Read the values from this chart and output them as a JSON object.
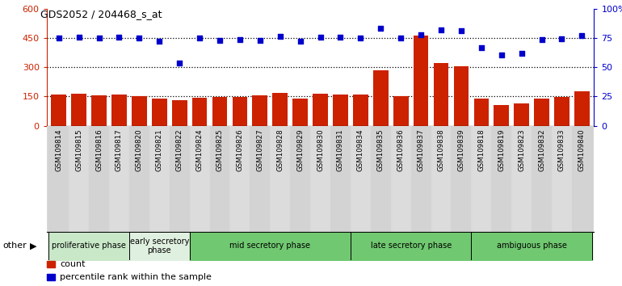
{
  "title": "GDS2052 / 204468_s_at",
  "samples": [
    "GSM109814",
    "GSM109815",
    "GSM109816",
    "GSM109817",
    "GSM109820",
    "GSM109821",
    "GSM109822",
    "GSM109824",
    "GSM109825",
    "GSM109826",
    "GSM109827",
    "GSM109828",
    "GSM109829",
    "GSM109830",
    "GSM109831",
    "GSM109834",
    "GSM109835",
    "GSM109836",
    "GSM109837",
    "GSM109838",
    "GSM109839",
    "GSM109818",
    "GSM109819",
    "GSM109823",
    "GSM109832",
    "GSM109833",
    "GSM109840"
  ],
  "counts": [
    160,
    163,
    155,
    160,
    152,
    140,
    130,
    142,
    148,
    147,
    155,
    168,
    140,
    165,
    162,
    160,
    283,
    152,
    462,
    320,
    305,
    138,
    105,
    115,
    138,
    148,
    175
  ],
  "percentiles": [
    450,
    452,
    450,
    452,
    448,
    435,
    323,
    450,
    438,
    442,
    438,
    458,
    435,
    452,
    452,
    450,
    500,
    450,
    466,
    490,
    488,
    400,
    362,
    370,
    440,
    444,
    462
  ],
  "phases": [
    {
      "name": "proliferative phase",
      "start": 0,
      "end": 4,
      "color": "#c8e8c8"
    },
    {
      "name": "early secretory\nphase",
      "start": 4,
      "end": 7,
      "color": "#e0f0e0"
    },
    {
      "name": "mid secretory phase",
      "start": 7,
      "end": 15,
      "color": "#70c870"
    },
    {
      "name": "late secretory phase",
      "start": 15,
      "end": 21,
      "color": "#70c870"
    },
    {
      "name": "ambiguous phase",
      "start": 21,
      "end": 27,
      "color": "#70c870"
    }
  ],
  "bar_color": "#cc2200",
  "dot_color": "#0000cc",
  "left_ylim": [
    0,
    600
  ],
  "right_ylim": [
    0,
    100
  ],
  "left_yticks": [
    0,
    150,
    300,
    450,
    600
  ],
  "right_yticks": [
    0,
    25,
    50,
    75,
    100
  ],
  "right_yticklabels": [
    "0",
    "25",
    "50",
    "75",
    "100%"
  ],
  "hgrid_values": [
    150,
    300,
    450
  ],
  "xtick_bg": "#d8d8d8"
}
